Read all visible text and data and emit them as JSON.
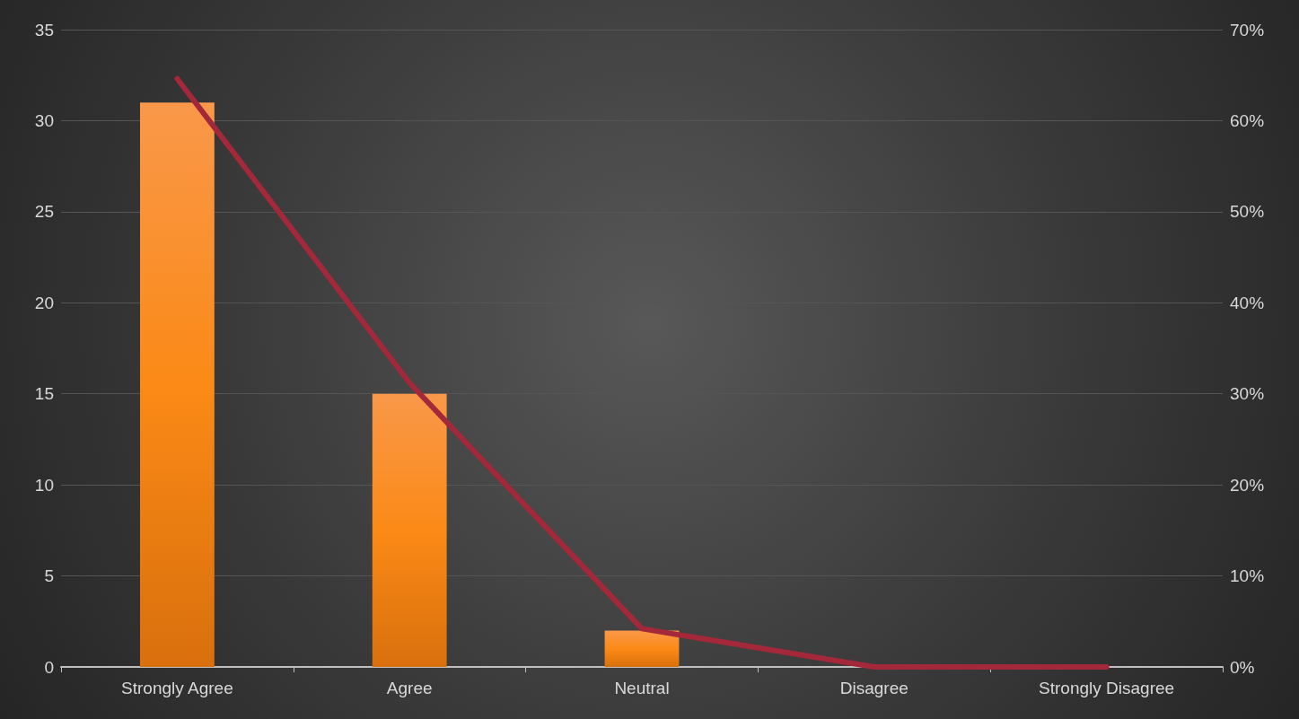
{
  "chart_data": {
    "type": "bar",
    "categories": [
      "Strongly Agree",
      "Agree",
      "Neutral",
      "Disagree",
      "Strongly Disagree"
    ],
    "series": [
      {
        "color": "#fb8a16",
        "values": [
          31,
          15,
          2,
          0,
          0
        ]
      },
      {
        "type": "line",
        "axis": "y2",
        "color": "#a3283a",
        "values": [
          64.6,
          31.2,
          4.2,
          0,
          0
        ]
      }
    ],
    "ylim": [
      0,
      35
    ],
    "yticks": [
      0,
      5,
      10,
      15,
      20,
      25,
      30,
      35
    ],
    "y2lim": [
      0,
      70
    ],
    "y2ticks": [
      {
        "value": 0,
        "label": "0%"
      },
      {
        "value": 10,
        "label": "10%"
      },
      {
        "value": 20,
        "label": "20%"
      },
      {
        "value": 30,
        "label": "30%"
      },
      {
        "value": 40,
        "label": "40%"
      },
      {
        "value": 50,
        "label": "50%"
      },
      {
        "value": 60,
        "label": "60%"
      },
      {
        "value": 70,
        "label": "70%"
      }
    ],
    "grid": "y",
    "marker": "none",
    "line_style": "solid"
  }
}
